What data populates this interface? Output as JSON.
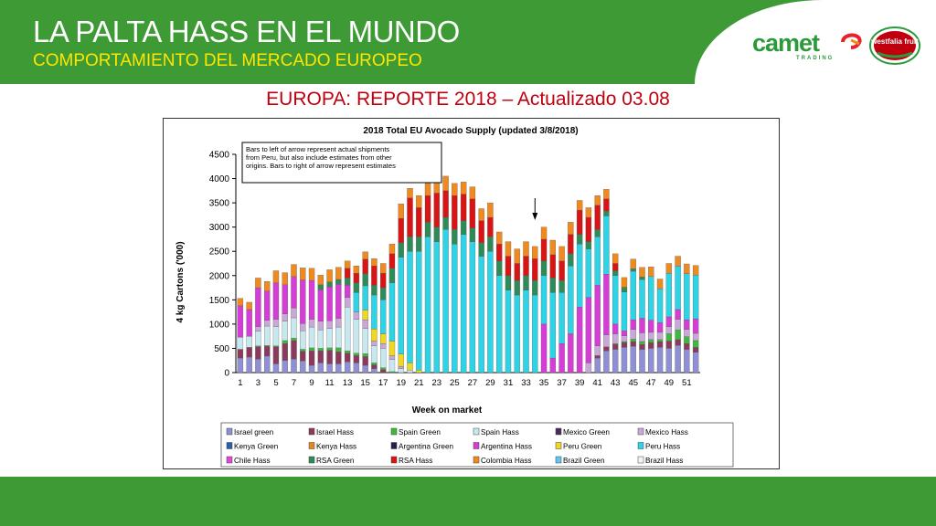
{
  "header": {
    "title": "LA PALTA HASS EN EL MUNDO",
    "subtitle": "COMPORTAMIENTO DEL MERCADO EUROPEO"
  },
  "logos": {
    "camet_word": "camet",
    "camet_sub": "TRADING",
    "westfalia": "westfalia fruit"
  },
  "report_title": "EUROPA: REPORTE 2018 – Actualizado 03.08",
  "colors": {
    "header_green": "#3d9a35",
    "subtitle_yellow": "#ffe600",
    "report_red": "#c0000f"
  },
  "chart_data": {
    "type": "bar",
    "stacked": true,
    "title": "2018 Total EU Avocado Supply (updated 3/8/2018)",
    "xlabel": "Week on market",
    "ylabel": "4 kg Cartons ('000)",
    "ylim": [
      0,
      4500
    ],
    "yticks": [
      0,
      500,
      1000,
      1500,
      2000,
      2500,
      3000,
      3500,
      4000,
      4500
    ],
    "categories": [
      "1",
      "2",
      "3",
      "4",
      "5",
      "6",
      "7",
      "8",
      "9",
      "10",
      "11",
      "12",
      "13",
      "14",
      "15",
      "16",
      "17",
      "18",
      "19",
      "20",
      "21",
      "22",
      "23",
      "24",
      "25",
      "26",
      "27",
      "28",
      "29",
      "30",
      "31",
      "32",
      "33",
      "34",
      "35",
      "36",
      "37",
      "38",
      "39",
      "40",
      "41",
      "42",
      "43",
      "44",
      "45",
      "46",
      "47",
      "48",
      "49",
      "50",
      "51",
      "52"
    ],
    "xtick_labels": [
      "1",
      "3",
      "5",
      "7",
      "9",
      "11",
      "13",
      "15",
      "17",
      "19",
      "21",
      "23",
      "25",
      "27",
      "29",
      "31",
      "33",
      "35",
      "37",
      "39",
      "41",
      "43",
      "45",
      "47",
      "49",
      "51"
    ],
    "annotation": "Bars to left of arrow represent actual shipments from Peru, but also include estimates from other origins. Bars to right of arrow represent estimates",
    "arrow_week": "34",
    "grid": false,
    "legend_position": "bottom",
    "series": [
      {
        "name": "Israel green",
        "color": "#8f8fd6",
        "values": [
          300,
          320,
          280,
          340,
          180,
          250,
          280,
          240,
          150,
          200,
          180,
          180,
          220,
          200,
          150,
          80,
          0,
          0,
          0,
          0,
          0,
          0,
          0,
          0,
          0,
          0,
          0,
          0,
          0,
          0,
          0,
          0,
          0,
          0,
          0,
          0,
          0,
          0,
          0,
          0,
          300,
          450,
          480,
          520,
          540,
          480,
          500,
          520,
          500,
          560,
          480,
          420
        ]
      },
      {
        "name": "Israel Hass",
        "color": "#8b3a5c",
        "values": [
          180,
          200,
          250,
          200,
          350,
          350,
          380,
          200,
          300,
          250,
          280,
          250,
          180,
          150,
          180,
          80,
          60,
          0,
          0,
          0,
          0,
          0,
          0,
          0,
          0,
          0,
          0,
          0,
          0,
          0,
          0,
          0,
          0,
          0,
          0,
          0,
          0,
          0,
          0,
          0,
          50,
          80,
          100,
          100,
          100,
          100,
          120,
          120,
          150,
          120,
          120,
          100
        ]
      },
      {
        "name": "Spain Green",
        "color": "#3cba3c",
        "values": [
          0,
          0,
          20,
          20,
          20,
          60,
          50,
          40,
          60,
          50,
          50,
          80,
          50,
          50,
          60,
          40,
          40,
          20,
          0,
          0,
          0,
          0,
          0,
          0,
          0,
          0,
          0,
          0,
          0,
          0,
          0,
          0,
          0,
          0,
          0,
          0,
          0,
          0,
          0,
          0,
          0,
          0,
          20,
          20,
          50,
          60,
          60,
          40,
          150,
          200,
          140,
          140
        ]
      },
      {
        "name": "Spain Hass",
        "color": "#c8e8f0",
        "values": [
          250,
          230,
          300,
          400,
          400,
          400,
          420,
          380,
          430,
          380,
          400,
          430,
          900,
          700,
          520,
          350,
          400,
          250,
          80,
          50,
          0,
          0,
          0,
          0,
          0,
          0,
          0,
          0,
          0,
          0,
          0,
          0,
          0,
          0,
          0,
          0,
          0,
          0,
          0,
          0,
          0,
          0,
          0,
          0,
          0,
          0,
          0,
          0,
          0,
          0,
          0,
          0
        ]
      },
      {
        "name": "Mexico Green",
        "color": "#4a2b5a",
        "values": [
          0,
          0,
          0,
          0,
          0,
          0,
          0,
          0,
          0,
          0,
          0,
          0,
          0,
          0,
          0,
          0,
          0,
          0,
          0,
          0,
          0,
          0,
          0,
          0,
          0,
          0,
          0,
          0,
          0,
          0,
          0,
          0,
          0,
          0,
          0,
          0,
          0,
          0,
          0,
          0,
          0,
          0,
          0,
          0,
          0,
          0,
          0,
          0,
          0,
          0,
          0,
          0
        ]
      },
      {
        "name": "Mexico Hass",
        "color": "#c9a8d8",
        "values": [
          0,
          0,
          100,
          120,
          150,
          150,
          200,
          150,
          160,
          180,
          160,
          180,
          200,
          150,
          180,
          100,
          100,
          80,
          50,
          0,
          0,
          0,
          0,
          0,
          0,
          0,
          0,
          0,
          0,
          0,
          0,
          0,
          0,
          0,
          0,
          0,
          0,
          0,
          0,
          200,
          200,
          250,
          200,
          120,
          200,
          180,
          150,
          150,
          150,
          220,
          150,
          150
        ]
      },
      {
        "name": "Kenya Green",
        "color": "#2f5fa8",
        "values": [
          0,
          0,
          0,
          0,
          0,
          0,
          0,
          0,
          0,
          0,
          0,
          0,
          0,
          0,
          0,
          0,
          0,
          0,
          0,
          0,
          0,
          0,
          0,
          0,
          0,
          0,
          0,
          0,
          0,
          0,
          0,
          0,
          0,
          0,
          0,
          0,
          0,
          0,
          0,
          0,
          0,
          0,
          0,
          0,
          0,
          0,
          0,
          0,
          0,
          0,
          0,
          0
        ]
      },
      {
        "name": "Kenya Hass",
        "color": "#e8861e",
        "values": [
          0,
          0,
          0,
          0,
          0,
          0,
          0,
          0,
          0,
          0,
          0,
          0,
          0,
          0,
          0,
          0,
          0,
          0,
          0,
          0,
          0,
          0,
          0,
          0,
          0,
          0,
          0,
          0,
          0,
          0,
          0,
          0,
          0,
          0,
          0,
          0,
          0,
          0,
          0,
          0,
          0,
          0,
          0,
          0,
          0,
          0,
          0,
          0,
          0,
          0,
          0,
          0
        ]
      },
      {
        "name": "Argentina Green",
        "color": "#24204a",
        "values": [
          0,
          0,
          0,
          0,
          0,
          0,
          0,
          0,
          0,
          0,
          0,
          0,
          0,
          0,
          0,
          0,
          0,
          0,
          0,
          0,
          0,
          0,
          0,
          0,
          0,
          0,
          0,
          0,
          0,
          0,
          0,
          0,
          0,
          0,
          0,
          0,
          0,
          0,
          0,
          0,
          0,
          0,
          0,
          0,
          0,
          0,
          0,
          0,
          0,
          0,
          0,
          0
        ]
      },
      {
        "name": "Argentina Hass",
        "color": "#d63cd6",
        "values": [
          650,
          550,
          800,
          600,
          750,
          600,
          650,
          900,
          800,
          650,
          700,
          700,
          250,
          0,
          0,
          0,
          0,
          0,
          0,
          0,
          0,
          0,
          0,
          0,
          0,
          0,
          0,
          0,
          0,
          0,
          0,
          0,
          0,
          0,
          1000,
          300,
          600,
          800,
          1350,
          1350,
          1250,
          1250,
          200,
          100,
          200,
          300,
          250,
          200,
          200,
          200,
          200,
          300
        ]
      },
      {
        "name": "Peru Green",
        "color": "#f0d820",
        "values": [
          0,
          0,
          0,
          0,
          0,
          0,
          0,
          0,
          0,
          0,
          0,
          0,
          0,
          0,
          200,
          250,
          200,
          300,
          250,
          150,
          50,
          0,
          0,
          0,
          0,
          0,
          0,
          0,
          0,
          0,
          0,
          0,
          0,
          0,
          0,
          0,
          0,
          0,
          0,
          0,
          0,
          0,
          0,
          0,
          0,
          0,
          0,
          0,
          0,
          0,
          0,
          0
        ]
      },
      {
        "name": "Peru Hass",
        "color": "#2fd3e6",
        "values": [
          0,
          0,
          0,
          0,
          0,
          0,
          0,
          0,
          0,
          0,
          0,
          0,
          0,
          400,
          500,
          700,
          700,
          1200,
          2000,
          2300,
          2450,
          2800,
          2700,
          2950,
          2650,
          2850,
          2700,
          2400,
          2500,
          2000,
          1700,
          1600,
          1700,
          1600,
          1000,
          1350,
          1050,
          1400,
          1300,
          1000,
          1000,
          1200,
          1000,
          800,
          1000,
          800,
          900,
          700,
          900,
          900,
          950,
          900
        ]
      },
      {
        "name": "Chile Hass",
        "color": "#e048d8",
        "values": [
          0,
          0,
          0,
          0,
          0,
          0,
          0,
          0,
          0,
          0,
          0,
          0,
          0,
          0,
          0,
          0,
          0,
          0,
          0,
          0,
          0,
          0,
          0,
          0,
          0,
          0,
          0,
          0,
          0,
          0,
          0,
          0,
          0,
          0,
          0,
          0,
          0,
          0,
          0,
          0,
          0,
          0,
          0,
          0,
          0,
          0,
          0,
          0,
          0,
          0,
          0,
          0
        ]
      },
      {
        "name": "RSA Green",
        "color": "#2e8b57",
        "values": [
          0,
          0,
          0,
          0,
          0,
          0,
          0,
          0,
          0,
          100,
          100,
          100,
          150,
          200,
          250,
          200,
          250,
          300,
          300,
          300,
          300,
          300,
          300,
          250,
          300,
          280,
          280,
          280,
          300,
          300,
          300,
          300,
          300,
          300,
          300,
          300,
          250,
          250,
          200,
          150,
          150,
          100,
          100,
          100,
          50,
          50,
          0,
          0,
          0,
          0,
          0,
          0
        ]
      },
      {
        "name": "RSA Hass",
        "color": "#d81414",
        "values": [
          0,
          0,
          0,
          0,
          0,
          0,
          0,
          0,
          0,
          0,
          0,
          0,
          200,
          200,
          300,
          400,
          300,
          300,
          500,
          800,
          600,
          550,
          700,
          550,
          700,
          550,
          600,
          450,
          400,
          350,
          400,
          350,
          400,
          450,
          450,
          480,
          400,
          400,
          500,
          500,
          500,
          250,
          150,
          0,
          0,
          0,
          0,
          0,
          0,
          0,
          0,
          0
        ]
      },
      {
        "name": "Colombia Hass",
        "color": "#f08a1e",
        "values": [
          150,
          150,
          200,
          200,
          250,
          250,
          250,
          250,
          250,
          200,
          250,
          250,
          150,
          150,
          150,
          150,
          200,
          200,
          300,
          200,
          250,
          250,
          250,
          300,
          250,
          250,
          250,
          250,
          300,
          250,
          300,
          300,
          300,
          250,
          250,
          300,
          300,
          250,
          200,
          200,
          200,
          200,
          200,
          200,
          200,
          200,
          200,
          200,
          200,
          200,
          200,
          200
        ]
      },
      {
        "name": "Brazil Green",
        "color": "#5ec8f0",
        "values": [
          0,
          0,
          0,
          0,
          0,
          0,
          0,
          0,
          0,
          0,
          0,
          0,
          0,
          0,
          0,
          0,
          0,
          0,
          0,
          0,
          0,
          0,
          0,
          0,
          0,
          0,
          0,
          0,
          0,
          0,
          0,
          0,
          0,
          0,
          0,
          0,
          0,
          0,
          0,
          0,
          0,
          0,
          0,
          0,
          0,
          0,
          0,
          0,
          0,
          0,
          0,
          0
        ]
      },
      {
        "name": "Brazil Hass",
        "color": "#f4f4f4",
        "values": [
          0,
          0,
          0,
          0,
          0,
          0,
          0,
          0,
          0,
          0,
          0,
          0,
          0,
          0,
          0,
          0,
          0,
          0,
          0,
          0,
          0,
          0,
          0,
          0,
          0,
          0,
          0,
          0,
          0,
          0,
          0,
          0,
          0,
          0,
          0,
          0,
          0,
          0,
          0,
          0,
          0,
          0,
          0,
          0,
          0,
          0,
          0,
          0,
          0,
          0,
          0,
          0
        ]
      }
    ]
  }
}
